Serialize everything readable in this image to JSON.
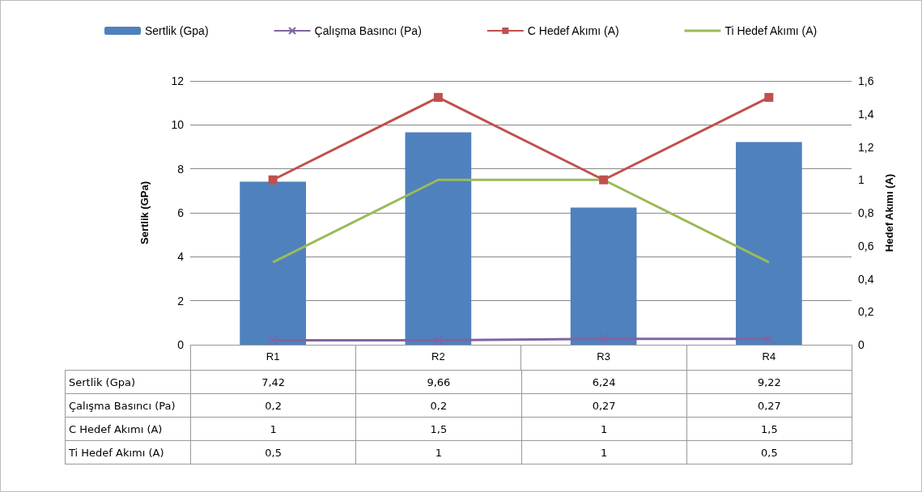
{
  "chart_data": {
    "type": "bar",
    "ylabel": "Sertlik (GPa)",
    "y2label": "Hedef Akımı (A)",
    "categories": [
      "R1",
      "R2",
      "R3",
      "R4"
    ],
    "series": [
      {
        "name": "Sertlik (Gpa)",
        "color": "#4f81bd",
        "values": [
          7.42,
          9.66,
          6.24,
          9.22
        ],
        "value_labels": [
          "7,42",
          "9,66",
          "6,24",
          "9,22"
        ]
      },
      {
        "name": "Çalışma Basıncı (Pa)",
        "type": "line",
        "color": "#8064a2",
        "marker": "cross",
        "values": [
          0.2,
          0.2,
          0.27,
          0.27
        ],
        "value_labels": [
          "0,2",
          "0,2",
          "0,27",
          "0,27"
        ]
      },
      {
        "name": "C Hedef Akımı (A)",
        "type": "line",
        "axis": "y2",
        "color": "#c0504d",
        "marker": "square",
        "values": [
          1,
          1.5,
          1,
          1.5
        ],
        "value_labels": [
          "1",
          "1,5",
          "1",
          "1,5"
        ]
      },
      {
        "name": "Ti Hedef Akımı (A)",
        "type": "line",
        "axis": "y2",
        "color": "#9bbb59",
        "marker": "none",
        "values": [
          0.5,
          1,
          1,
          0.5
        ],
        "value_labels": [
          "0,5",
          "1",
          "1",
          "0,5"
        ]
      }
    ],
    "ylim": [
      0,
      12
    ],
    "yticks": [
      0,
      2,
      4,
      6,
      8,
      10,
      12
    ],
    "y2lim": [
      0,
      1.6
    ],
    "y2ticks": [
      0,
      {
        "value": 0.2,
        "label": "0,2"
      },
      {
        "value": 0.4,
        "label": "0,4"
      },
      {
        "value": 0.6,
        "label": "0,6"
      },
      {
        "value": 0.8,
        "label": "0,8"
      },
      1,
      {
        "value": 1.2,
        "label": "1,2"
      },
      {
        "value": 1.4,
        "label": "1,4"
      },
      {
        "value": 1.6,
        "label": "1,6"
      }
    ],
    "grid": "y",
    "legend": "top",
    "line_style": "solid"
  }
}
